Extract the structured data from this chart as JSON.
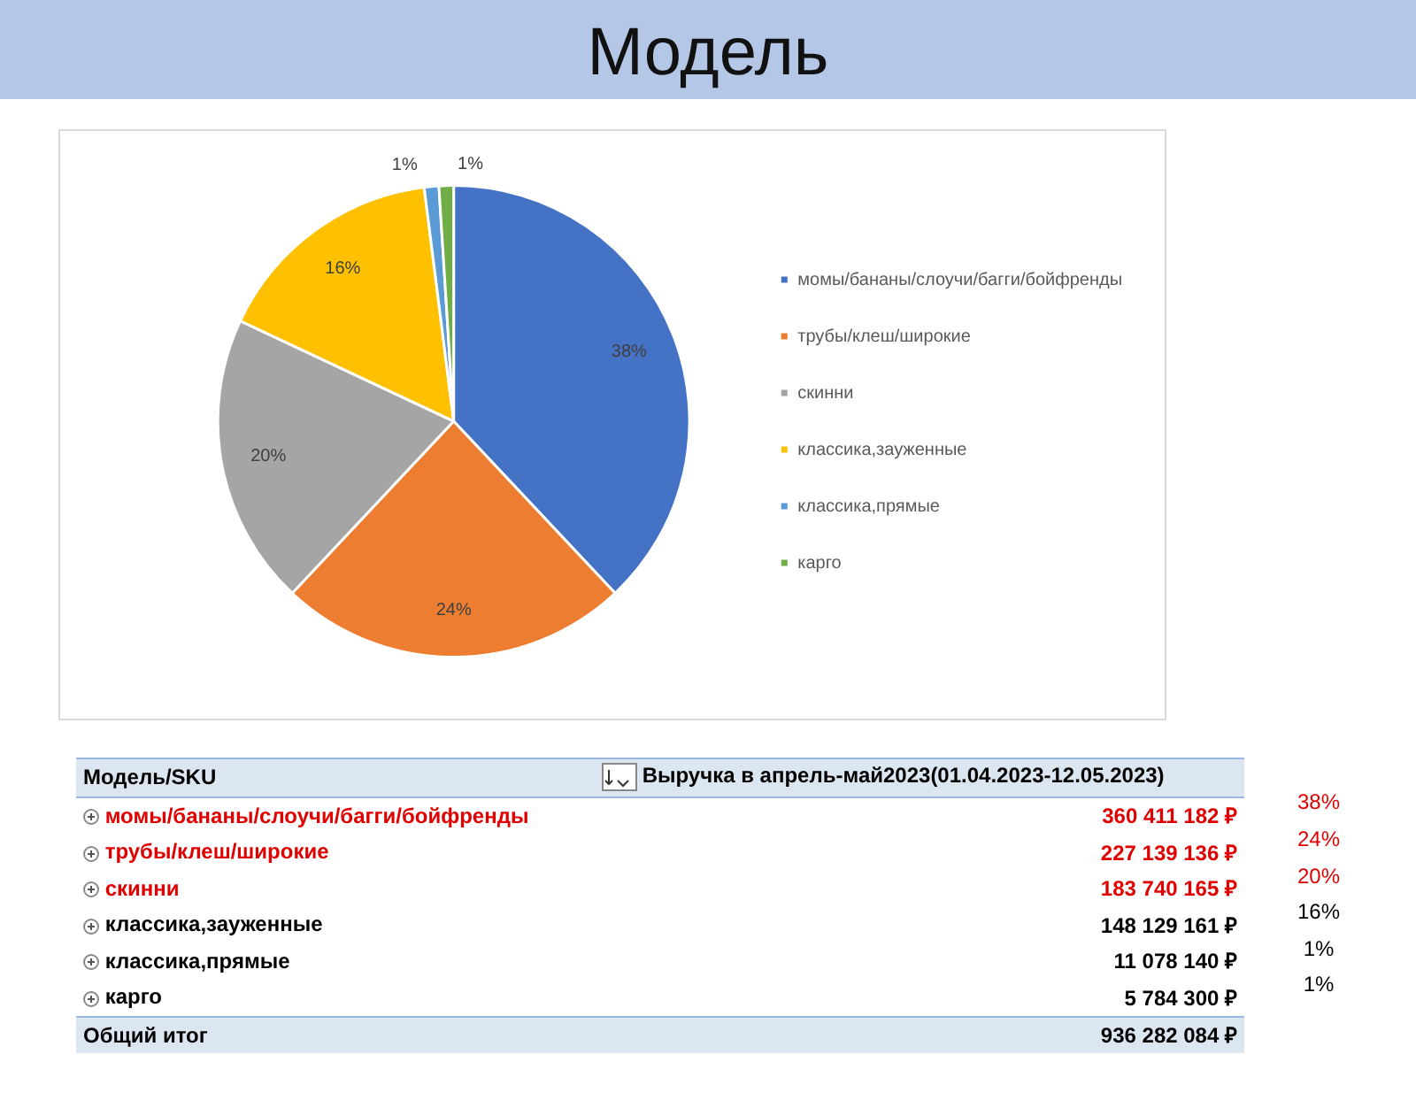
{
  "chart_data": {
    "type": "pie",
    "title": "Модель",
    "categories": [
      "момы/бананы/слоучи/багги/бойфренды",
      "трубы/клеш/широкие",
      "скинни",
      "классика,зауженные",
      "классика,прямые",
      "карго"
    ],
    "values": [
      38,
      24,
      20,
      16,
      1,
      1
    ],
    "value_labels": [
      "38%",
      "24%",
      "20%",
      "16%",
      "1%",
      "1%"
    ],
    "colors": [
      "#4472c4",
      "#ed7d31",
      "#a5a5a5",
      "#ffc000",
      "#5b9bd5",
      "#70ad47"
    ],
    "legend": "right",
    "annotations": [
      "Модель/SKU",
      "Выручка в апрель-май2023(01.04.2023-12.05.2023)",
      "360 411 182 ₽",
      "227 139 136 ₽",
      "183 740 165 ₽",
      "148 129 161 ₽",
      "11 078 140 ₽",
      "5 784 300 ₽",
      "Общий итог",
      "936 282 084 ₽"
    ]
  }
}
